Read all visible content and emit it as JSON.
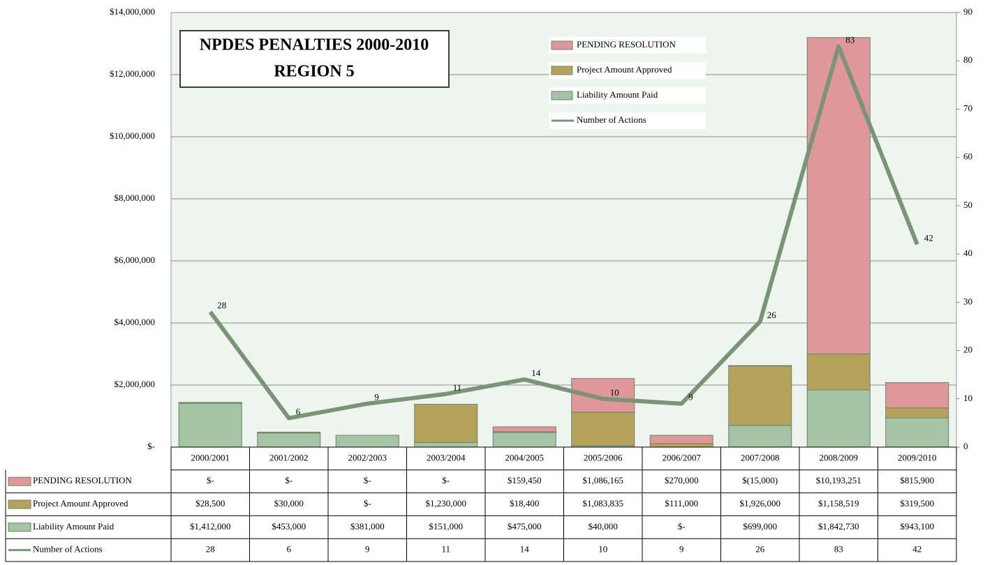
{
  "chart_data": {
    "type": "bar",
    "title": "NPDES PENALTIES 2000-2010",
    "subtitle": "REGION 5",
    "categories": [
      "2000/2001",
      "2001/2002",
      "2002/2003",
      "2003/2004",
      "2004/2005",
      "2005/2006",
      "2006/2007",
      "2007/2008",
      "2008/2009",
      "2009/2010"
    ],
    "series": [
      {
        "name": "Liability Amount Paid",
        "color": "#a5c4a3",
        "values": [
          1412000,
          453000,
          381000,
          151000,
          475000,
          40000,
          0,
          699000,
          1842730,
          943100
        ],
        "value_labels": [
          "$1,412,000",
          "$453,000",
          "$381,000",
          "$151,000",
          "$475,000",
          "$40,000",
          "$-",
          "$699,000",
          "$1,842,730",
          "$943,100"
        ]
      },
      {
        "name": "Project Amount Approved",
        "color": "#b6a35b",
        "values": [
          28500,
          30000,
          0,
          1230000,
          18400,
          1083835,
          111000,
          1926000,
          1158519,
          319500
        ],
        "value_labels": [
          "$28,500",
          "$30,000",
          "$-",
          "$1,230,000",
          "$18,400",
          "$1,083,835",
          "$111,000",
          "$1,926,000",
          "$1,158,519",
          "$319,500"
        ]
      },
      {
        "name": "PENDING RESOLUTION",
        "color": "#e0979a",
        "values": [
          0,
          0,
          0,
          0,
          159450,
          1086165,
          270000,
          -15000,
          10193251,
          815900
        ],
        "value_labels": [
          "$-",
          "$-",
          "$-",
          "$-",
          "$159,450",
          "$1,086,165",
          "$270,000",
          "$(15,000)",
          "$10,193,251",
          "$815,900"
        ]
      },
      {
        "name": "Number of Actions",
        "color": "#7a9478",
        "type": "line",
        "axis": "y2",
        "values": [
          28,
          6,
          9,
          11,
          14,
          10,
          9,
          26,
          83,
          42
        ]
      }
    ],
    "ylim": [
      0,
      14000000
    ],
    "yticks": [
      {
        "value": 0,
        "label": "$-"
      },
      {
        "value": 2000000,
        "label": "$2,000,000"
      },
      {
        "value": 4000000,
        "label": "$4,000,000"
      },
      {
        "value": 6000000,
        "label": "$6,000,000"
      },
      {
        "value": 8000000,
        "label": "$8,000,000"
      },
      {
        "value": 10000000,
        "label": "$10,000,000"
      },
      {
        "value": 12000000,
        "label": "$12,000,000"
      },
      {
        "value": 14000000,
        "label": "$14,000,000"
      }
    ],
    "y2lim": [
      0,
      90
    ],
    "y2ticks": [
      0,
      10,
      20,
      30,
      40,
      50,
      60,
      70,
      80,
      90
    ],
    "grid": true,
    "legend": "top"
  }
}
